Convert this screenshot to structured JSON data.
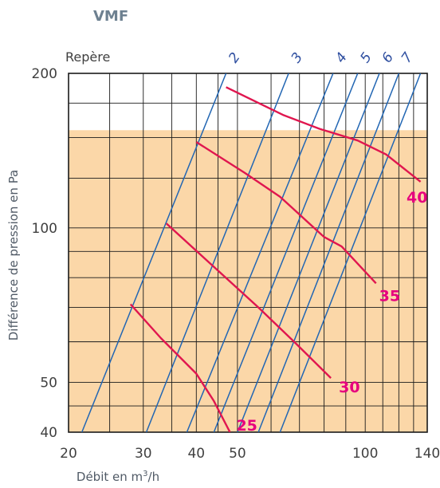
{
  "title": "VMF",
  "chart_data": {
    "type": "line",
    "x_scale": "log",
    "y_scale": "log",
    "xlim": [
      20,
      140
    ],
    "ylim": [
      40,
      200
    ],
    "xticks": [
      20,
      30,
      40,
      50,
      100,
      140
    ],
    "yticks": [
      40,
      50,
      100,
      200
    ],
    "xlabel": "Débit en m",
    "xlabel_sup": "3",
    "xlabel_tail": "/h",
    "ylabel": "Différence de pression en Pa",
    "marker_title": "Repère",
    "shaded_region_max_y": 155,
    "markers": [
      {
        "label": "2",
        "points": [
          [
            21.5,
            40
          ],
          [
            47,
            200
          ]
        ]
      },
      {
        "label": "3",
        "points": [
          [
            30.5,
            40
          ],
          [
            66,
            200
          ]
        ]
      },
      {
        "label": "4",
        "points": [
          [
            38,
            40
          ],
          [
            84,
            200
          ]
        ]
      },
      {
        "label": "5",
        "points": [
          [
            44,
            40
          ],
          [
            96,
            200
          ]
        ]
      },
      {
        "label": "6",
        "points": [
          [
            50,
            40
          ],
          [
            108,
            200
          ]
        ]
      },
      {
        "label": "7",
        "points": [
          [
            56,
            40
          ],
          [
            120,
            200
          ]
        ]
      },
      {
        "label": "",
        "points": [
          [
            63,
            40
          ],
          [
            135,
            200
          ]
        ]
      }
    ],
    "series": [
      {
        "name": "25",
        "points": [
          [
            28,
            71
          ],
          [
            33,
            61
          ],
          [
            40,
            52
          ],
          [
            44,
            46
          ],
          [
            48,
            40
          ]
        ]
      },
      {
        "name": "30",
        "points": [
          [
            34,
            102
          ],
          [
            44,
            84
          ],
          [
            56,
            70
          ],
          [
            68,
            60
          ],
          [
            83,
            51
          ]
        ]
      },
      {
        "name": "35",
        "points": [
          [
            40,
            147
          ],
          [
            52,
            128
          ],
          [
            63,
            115
          ],
          [
            80,
            96
          ],
          [
            88,
            92
          ],
          [
            106,
            78
          ]
        ]
      },
      {
        "name": "40",
        "points": [
          [
            47,
            188
          ],
          [
            64,
            166
          ],
          [
            78,
            156
          ],
          [
            96,
            148
          ],
          [
            112,
            139
          ],
          [
            135,
            123
          ]
        ]
      }
    ]
  },
  "colors": {
    "shade": "#fbd7a8",
    "grid": "#1a1a1a",
    "marker_line": "#2266b3",
    "curve": "#e0164f",
    "curve_label": "#e6007e"
  }
}
